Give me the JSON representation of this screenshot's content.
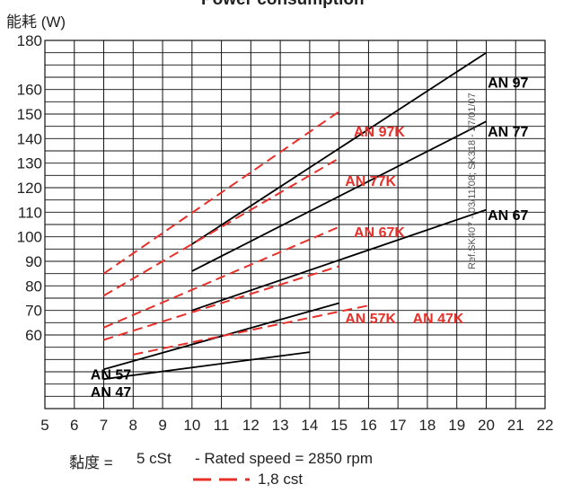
{
  "chart_data": {
    "type": "line",
    "title": "Power consumption",
    "ylabel": "能耗 (W)",
    "xlim": [
      5,
      22
    ],
    "ylim": [
      30,
      180
    ],
    "x_ticks": [
      5,
      6,
      7,
      8,
      9,
      10,
      11,
      12,
      13,
      14,
      15,
      16,
      17,
      18,
      19,
      20,
      21,
      22
    ],
    "y_tick_labels": [
      {
        "value": 180,
        "label": "180"
      },
      {
        "value": 160,
        "label": "160"
      },
      {
        "value": 150,
        "label": "150"
      },
      {
        "value": 140,
        "label": "140"
      },
      {
        "value": 130,
        "label": "130"
      },
      {
        "value": 120,
        "label": "120"
      },
      {
        "value": 110,
        "label": "110"
      },
      {
        "value": 100,
        "label": "100"
      },
      {
        "value": 90,
        "label": "90"
      },
      {
        "value": 80,
        "label": "80"
      },
      {
        "value": 70,
        "label": "70"
      },
      {
        "value": 60,
        "label": "60"
      }
    ],
    "grid": true,
    "footer": {
      "viscosity_label": "黏度 =",
      "viscosity_value": "5 cSt",
      "rated_speed": "- Rated speed = 2850 rpm",
      "legend_dashed": "1,8 cst"
    },
    "side_text": "Ref.SK407 - 03/11/08; SK318 - 27/01/07",
    "colors": {
      "solid": "#000000",
      "dashed": "#e8302a",
      "grid": "#111111"
    },
    "series": [
      {
        "name": "AN 97",
        "style": "solid",
        "x": [
          10,
          20
        ],
        "y": [
          97,
          175
        ]
      },
      {
        "name": "AN 77",
        "style": "solid",
        "x": [
          10,
          20
        ],
        "y": [
          86,
          147
        ]
      },
      {
        "name": "AN 67",
        "style": "solid",
        "x": [
          10,
          20
        ],
        "y": [
          70,
          111
        ]
      },
      {
        "name": "AN 57",
        "style": "solid",
        "x": [
          7,
          15
        ],
        "y": [
          46,
          73
        ]
      },
      {
        "name": "AN 47",
        "style": "solid",
        "x": [
          7,
          14
        ],
        "y": [
          42,
          53
        ]
      },
      {
        "name": "AN 97K",
        "style": "dashed",
        "x": [
          7,
          15
        ],
        "y": [
          85,
          151
        ]
      },
      {
        "name": "AN 77K",
        "style": "dashed",
        "x": [
          7,
          15
        ],
        "y": [
          76,
          132
        ]
      },
      {
        "name": "AN 67K",
        "style": "dashed",
        "x": [
          7,
          15
        ],
        "y": [
          63,
          104
        ]
      },
      {
        "name": "AN 57K",
        "style": "dashed",
        "x": [
          7,
          15
        ],
        "y": [
          58,
          88
        ]
      },
      {
        "name": "AN 47K",
        "style": "dashed",
        "x": [
          8,
          16
        ],
        "y": [
          52,
          72
        ]
      }
    ],
    "series_labels": [
      {
        "text": "AN 97",
        "color": "solid",
        "x": 20.05,
        "y": 163
      },
      {
        "text": "AN 77",
        "color": "solid",
        "x": 20.05,
        "y": 143
      },
      {
        "text": "AN 67",
        "color": "solid",
        "x": 20.05,
        "y": 109
      },
      {
        "text": "AN 97K",
        "color": "dashed",
        "x": 15.5,
        "y": 143
      },
      {
        "text": "AN 77K",
        "color": "dashed",
        "x": 15.2,
        "y": 123
      },
      {
        "text": "AN 67K",
        "color": "dashed",
        "x": 15.5,
        "y": 102
      },
      {
        "text": "AN 57K",
        "color": "dashed",
        "x": 15.2,
        "y": 67
      },
      {
        "text": "AN 47K",
        "color": "dashed",
        "x": 17.5,
        "y": 67
      },
      {
        "text": "AN 57",
        "color": "solid",
        "x": 6.55,
        "y": 44
      },
      {
        "text": "AN 47",
        "color": "solid",
        "x": 6.55,
        "y": 37
      }
    ]
  }
}
